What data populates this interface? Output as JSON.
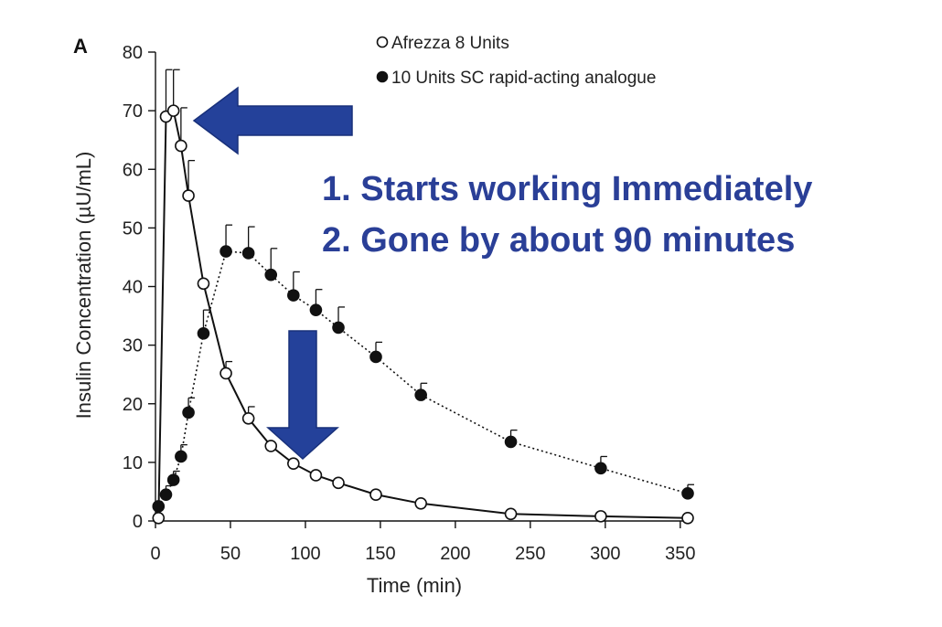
{
  "panel_label": "A",
  "callouts": [
    "1.  Starts working Immediately",
    "2.  Gone by about 90 minutes"
  ],
  "colors": {
    "callout_text": "#2a3f97",
    "arrow_fill": "#24419a",
    "arrow_edge": "#18307a",
    "series_line": "#111111"
  },
  "chart_data": {
    "type": "line",
    "xlabel": "Time (min)",
    "ylabel": "Insulin Concentration (µU/mL)",
    "xlim": [
      0,
      355
    ],
    "ylim": [
      0,
      80
    ],
    "xticks": [
      0,
      50,
      100,
      150,
      200,
      250,
      300,
      350
    ],
    "yticks": [
      0,
      10,
      20,
      30,
      40,
      50,
      60,
      70,
      80
    ],
    "grid": false,
    "legend_position": "top",
    "series": [
      {
        "name": "Afrezza 8 Units",
        "marker": "open-circle",
        "line": "solid",
        "x": [
          2,
          7,
          12,
          17,
          22,
          32,
          47,
          62,
          77,
          92,
          107,
          122,
          147,
          177,
          237,
          297,
          355
        ],
        "y": [
          0.5,
          69,
          70,
          64,
          55.5,
          40.5,
          25.2,
          17.5,
          12.8,
          9.8,
          7.8,
          6.5,
          4.5,
          3.0,
          1.2,
          0.8,
          0.5
        ],
        "err": [
          0,
          8,
          7,
          6.5,
          6,
          0,
          2,
          2,
          0,
          0,
          0,
          0,
          0,
          0,
          0,
          0,
          0
        ]
      },
      {
        "name": "10 Units SC rapid-acting analogue",
        "marker": "filled-circle",
        "line": "dotted",
        "x": [
          2,
          7,
          12,
          17,
          22,
          32,
          47,
          62,
          77,
          92,
          107,
          122,
          147,
          177,
          237,
          297,
          355
        ],
        "y": [
          2.5,
          4.5,
          7,
          11,
          18.5,
          32,
          46,
          45.7,
          42,
          38.5,
          36,
          33,
          28,
          21.5,
          13.5,
          9,
          4.7
        ],
        "err": [
          0,
          1.5,
          1.5,
          2,
          2.5,
          4,
          4.5,
          4.5,
          4.5,
          4,
          3.5,
          3.5,
          2.5,
          2,
          2,
          2,
          1.5
        ]
      }
    ]
  }
}
